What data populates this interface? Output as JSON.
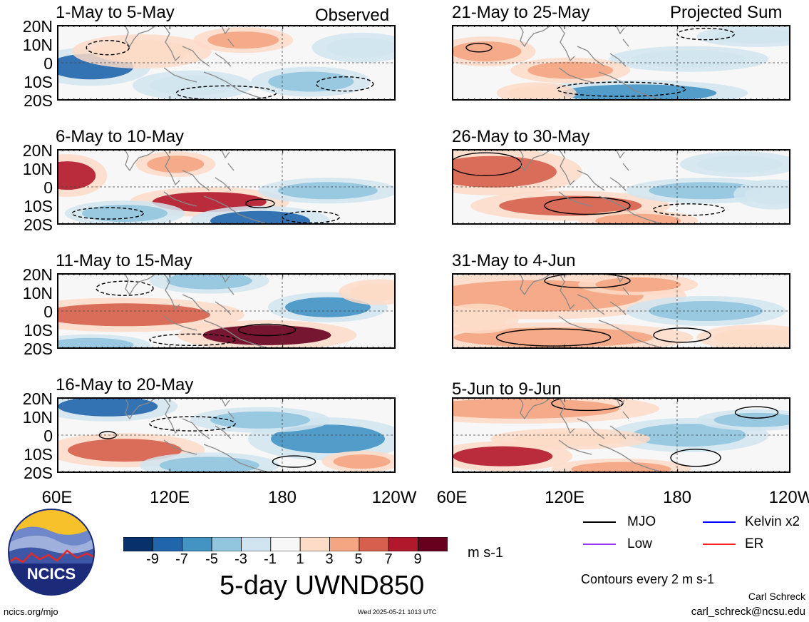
{
  "panels": [
    {
      "id": "p1",
      "title": "1-May to 5-May",
      "corner": "Observed"
    },
    {
      "id": "p2",
      "title": "6-May to 10-May",
      "corner": ""
    },
    {
      "id": "p3",
      "title": "11-May to 15-May",
      "corner": ""
    },
    {
      "id": "p4",
      "title": "16-May to 20-May",
      "corner": ""
    },
    {
      "id": "p5",
      "title": "21-May to 25-May",
      "corner": "Projected Sum"
    },
    {
      "id": "p6",
      "title": "26-May to 30-May",
      "corner": ""
    },
    {
      "id": "p7",
      "title": "31-May to 4-Jun",
      "corner": ""
    },
    {
      "id": "p8",
      "title": "5-Jun to 9-Jun",
      "corner": ""
    }
  ],
  "lat_labels": [
    "20N",
    "10N",
    "0",
    "10S",
    "20S"
  ],
  "lon_labels": [
    "60E",
    "120E",
    "180",
    "120W"
  ],
  "colorbar": {
    "labels": [
      "-9",
      "-7",
      "-5",
      "-3",
      "-1",
      "1",
      "3",
      "5",
      "7",
      "9"
    ],
    "colors": [
      "#08306b",
      "#2166ac",
      "#4393c3",
      "#92c5de",
      "#d1e5f0",
      "#f7f7f7",
      "#fddbc7",
      "#f4a582",
      "#d6604d",
      "#b2182b",
      "#67001f"
    ],
    "units": "m s-1"
  },
  "main_title": "5-day UWND850",
  "legend": [
    {
      "label": "MJO",
      "color": "#000000"
    },
    {
      "label": "Kelvin x2",
      "color": "#0000ff"
    },
    {
      "label": "Low",
      "color": "#9933ff"
    },
    {
      "label": "ER",
      "color": "#ff2020"
    }
  ],
  "contour_note": "Contours every 2 m s-1",
  "author": "Carl Schreck",
  "email": "carl_schreck@ncsu.edu",
  "site": "ncics.org/mjo",
  "timestamp": "Wed 2025-05-21 1013 UTC",
  "logo_text": "NCICS"
}
